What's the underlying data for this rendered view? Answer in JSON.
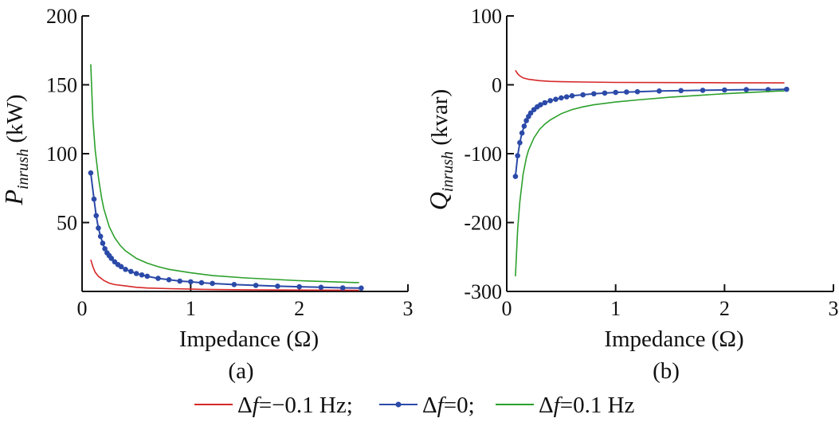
{
  "chart_data": [
    {
      "type": "line",
      "panel_label": "(a)",
      "xlabel": "Impedance (Ω)",
      "ylabel_main": "P",
      "ylabel_sub": "inrush",
      "ylabel_unit": " (kW)",
      "xlim": [
        0,
        3
      ],
      "ylim": [
        0,
        200
      ],
      "xticks": [
        "0",
        "1",
        "2",
        "3"
      ],
      "yticks": [
        "50",
        "100",
        "150",
        "200"
      ],
      "ytick_values": [
        50,
        100,
        150,
        200
      ],
      "series": [
        {
          "key": "neg",
          "x": [
            0.08,
            0.1,
            0.12,
            0.15,
            0.2,
            0.25,
            0.3,
            0.4,
            0.5,
            0.6,
            0.8,
            1.0,
            1.2,
            1.5,
            2.0,
            2.5,
            2.55
          ],
          "y": [
            23,
            18,
            14,
            11,
            8,
            6,
            5,
            4,
            3,
            2.5,
            2,
            1.7,
            1.4,
            1.2,
            1,
            0.8,
            0.8
          ]
        },
        {
          "key": "zero",
          "x": [
            0.08,
            0.11,
            0.13,
            0.15,
            0.17,
            0.19,
            0.21,
            0.23,
            0.25,
            0.27,
            0.3,
            0.33,
            0.36,
            0.4,
            0.45,
            0.5,
            0.55,
            0.6,
            0.7,
            0.8,
            0.9,
            1.0,
            1.1,
            1.2,
            1.4,
            1.6,
            1.8,
            2.0,
            2.2,
            2.4,
            2.57
          ],
          "y": [
            86,
            67,
            55,
            46,
            40,
            35,
            31,
            28,
            26,
            24,
            21.5,
            19.5,
            18,
            16,
            14.5,
            13,
            12,
            11,
            9.5,
            8.5,
            7.5,
            7,
            6.3,
            5.8,
            5,
            4.4,
            3.8,
            3.4,
            3,
            2.6,
            2.4
          ]
        },
        {
          "key": "pos",
          "x": [
            0.08,
            0.1,
            0.12,
            0.15,
            0.18,
            0.2,
            0.25,
            0.3,
            0.35,
            0.4,
            0.5,
            0.6,
            0.7,
            0.8,
            1.0,
            1.2,
            1.5,
            2.0,
            2.5,
            2.55
          ],
          "y": [
            165,
            125,
            103,
            83,
            68,
            60,
            47,
            39,
            33.5,
            29.5,
            24,
            20.5,
            18,
            16,
            13.5,
            11.5,
            9.8,
            7.8,
            6.5,
            6.4
          ]
        }
      ]
    },
    {
      "type": "line",
      "panel_label": "(b)",
      "xlabel": "Impedance (Ω)",
      "ylabel_main": "Q",
      "ylabel_sub": "inrush",
      "ylabel_unit": " (kvar)",
      "xlim": [
        0,
        3
      ],
      "ylim": [
        -300,
        100
      ],
      "xticks": [
        "0",
        "1",
        "2",
        "3"
      ],
      "yticks": [
        "100",
        "0",
        "-100",
        "-200",
        "-300"
      ],
      "ytick_values": [
        100,
        0,
        -100,
        -200,
        -300
      ],
      "series": [
        {
          "key": "neg",
          "x": [
            0.08,
            0.1,
            0.12,
            0.15,
            0.2,
            0.3,
            0.4,
            0.5,
            0.7,
            1.0,
            1.5,
            2.0,
            2.55
          ],
          "y": [
            21,
            16,
            13,
            10,
            8,
            6,
            5,
            4.5,
            4,
            3.5,
            3.2,
            3,
            2.8
          ]
        },
        {
          "key": "zero",
          "x": [
            0.08,
            0.1,
            0.12,
            0.14,
            0.16,
            0.18,
            0.2,
            0.22,
            0.25,
            0.28,
            0.31,
            0.35,
            0.4,
            0.45,
            0.5,
            0.55,
            0.6,
            0.7,
            0.8,
            0.9,
            1.0,
            1.1,
            1.2,
            1.4,
            1.6,
            1.8,
            2.0,
            2.2,
            2.4,
            2.57
          ],
          "y": [
            -133,
            -103,
            -84,
            -70,
            -60,
            -52,
            -46,
            -41,
            -36,
            -32,
            -29,
            -26,
            -23,
            -21,
            -19,
            -17.5,
            -16,
            -14.5,
            -13,
            -12,
            -11,
            -10.5,
            -10,
            -9,
            -8.5,
            -8,
            -7.5,
            -7,
            -7,
            -6.5
          ]
        },
        {
          "key": "pos",
          "x": [
            0.08,
            0.1,
            0.12,
            0.15,
            0.18,
            0.2,
            0.25,
            0.3,
            0.35,
            0.4,
            0.5,
            0.6,
            0.7,
            0.8,
            1.0,
            1.2,
            1.5,
            2.0,
            2.5,
            2.55
          ],
          "y": [
            -278,
            -210,
            -170,
            -130,
            -106,
            -95,
            -77,
            -65,
            -57,
            -51,
            -42,
            -36,
            -32,
            -29,
            -25,
            -22,
            -18,
            -13,
            -9,
            -9
          ]
        }
      ]
    }
  ],
  "legend": {
    "placement": "bottom-center",
    "items": [
      {
        "key": "neg",
        "symbol": "Δ",
        "var": "f",
        "text": "=−0.1 Hz;",
        "color": "#d62728",
        "marker": false
      },
      {
        "key": "zero",
        "symbol": "Δ",
        "var": "f",
        "text": "=0;",
        "color": "#2b4aa8",
        "marker": true
      },
      {
        "key": "pos",
        "symbol": "Δ",
        "var": "f",
        "text": "=0.1 Hz",
        "color": "#2ca02c",
        "marker": false
      }
    ]
  },
  "colors": {
    "neg": "#d62728",
    "zero": "#2b4aa8",
    "pos": "#2ca02c",
    "axis": "#111111"
  }
}
